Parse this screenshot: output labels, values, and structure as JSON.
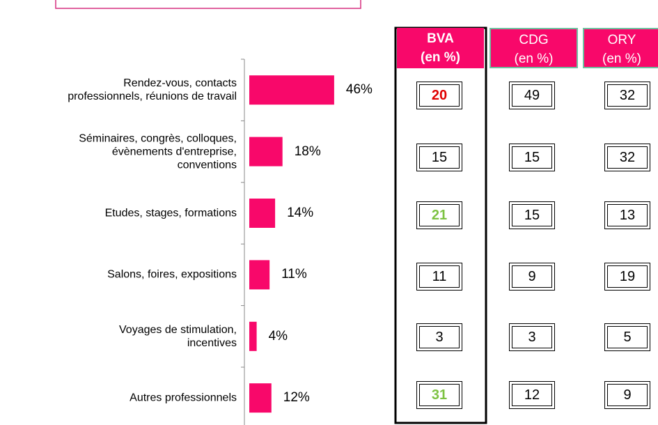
{
  "chart_data": {
    "type": "bar",
    "orientation": "horizontal",
    "categories": [
      "Rendez-vous, contacts\nprofessionnels, réunions de travail",
      "Séminaires, congrès, colloques,\névènements d'entreprise,\nconventions",
      "Etudes, stages, formations",
      "Salons, foires, expositions",
      "Voyages de stimulation,\nincentives",
      "Autres professionnels"
    ],
    "values": [
      46,
      18,
      14,
      11,
      4,
      12
    ],
    "value_labels": [
      "46%",
      "18%",
      "14%",
      "11%",
      "4%",
      "12%"
    ],
    "color": "#f8086a"
  },
  "table": {
    "columns": [
      {
        "name": "BVA",
        "unit": "(en %)",
        "bold_header": true,
        "values": [
          20,
          15,
          21,
          11,
          3,
          31
        ],
        "value_colors": [
          "#e00000",
          "#000000",
          "#7dc242",
          "#000000",
          "#000000",
          "#7dc242"
        ],
        "value_bold": [
          true,
          false,
          true,
          false,
          false,
          true
        ]
      },
      {
        "name": "CDG",
        "unit": "(en %)",
        "bold_header": false,
        "values": [
          49,
          15,
          15,
          9,
          3,
          12
        ],
        "value_colors": [
          "#000000",
          "#000000",
          "#000000",
          "#000000",
          "#000000",
          "#000000"
        ],
        "value_bold": [
          false,
          false,
          false,
          false,
          false,
          false
        ]
      },
      {
        "name": "ORY",
        "unit": "(en %)",
        "bold_header": false,
        "values": [
          32,
          32,
          13,
          19,
          5,
          9
        ],
        "value_colors": [
          "#000000",
          "#000000",
          "#000000",
          "#000000",
          "#000000",
          "#000000"
        ],
        "value_bold": [
          false,
          false,
          false,
          false,
          false,
          false
        ]
      }
    ]
  }
}
